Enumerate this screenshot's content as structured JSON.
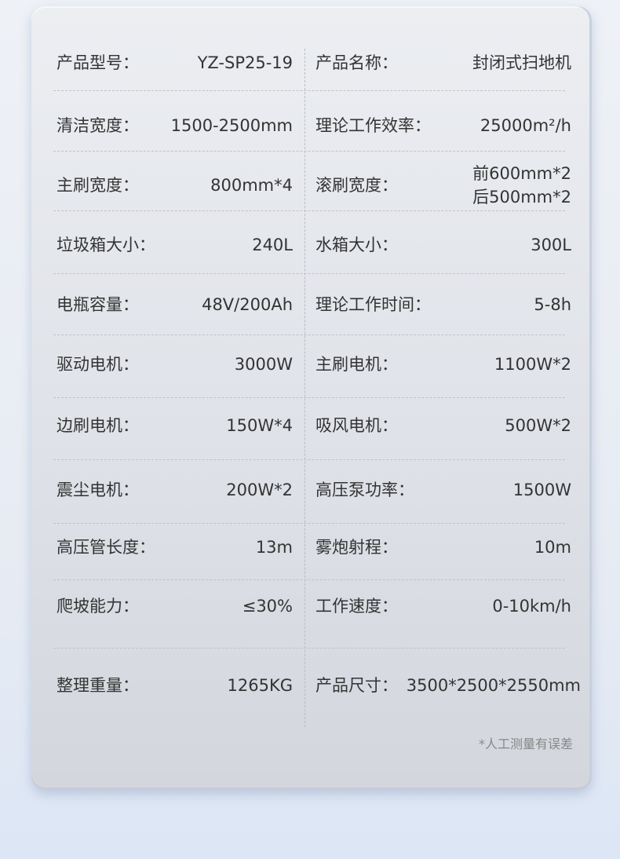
{
  "specs": [
    {
      "left_label": "产品型号：",
      "left_value": "YZ-SP25-19",
      "right_label": "产品名称：",
      "right_value": "封闭式扫地机"
    },
    {
      "left_label": "清洁宽度：",
      "left_value": "1500-2500mm",
      "right_label": "理论工作效率：",
      "right_value": "25000m²/h"
    },
    {
      "left_label": "主刷宽度：",
      "left_value": "800mm*4",
      "right_label": "滚刷宽度：",
      "right_value": [
        "前600mm*2",
        "后500mm*2"
      ]
    },
    {
      "left_label": "垃圾箱大小：",
      "left_value": "240L",
      "right_label": "水箱大小：",
      "right_value": "300L"
    },
    {
      "left_label": "电瓶容量：",
      "left_value": "48V/200Ah",
      "right_label": "理论工作时间：",
      "right_value": "5-8h"
    },
    {
      "left_label": "驱动电机：",
      "left_value": "3000W",
      "right_label": "主刷电机：",
      "right_value": "1100W*2"
    },
    {
      "left_label": "边刷电机：",
      "left_value": "150W*4",
      "right_label": "吸风电机：",
      "right_value": "500W*2"
    },
    {
      "left_label": "震尘电机：",
      "left_value": "200W*2",
      "right_label": "高压泵功率：",
      "right_value": "1500W"
    },
    {
      "left_label": "高压管长度：",
      "left_value": "13m",
      "right_label": "雾炮射程：",
      "right_value": "10m"
    },
    {
      "left_label": "爬坡能力：",
      "left_value": "≤30%",
      "right_label": "工作速度：",
      "right_value": "0-10km/h"
    },
    {
      "left_label": "整理重量：",
      "left_value": "1265KG",
      "right_label": "产品尺寸：",
      "right_value": "3500*2500*2550mm"
    }
  ],
  "note": "*人工测量有误差"
}
